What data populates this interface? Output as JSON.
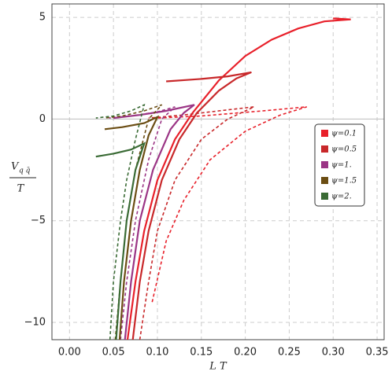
{
  "chart_data": {
    "type": "line",
    "x_label": "L T",
    "y_label": {
      "numerator": "V",
      "subscript": "q q̄",
      "denominator": "T"
    },
    "xlim": [
      -0.02,
      0.358
    ],
    "ylim": [
      -10.85,
      5.66
    ],
    "xticks": [
      {
        "value": 0,
        "label": "0.00"
      },
      0.05,
      {
        "value": 0.1,
        "label": "0.10"
      },
      0.15,
      {
        "value": 0.2,
        "label": "0.20"
      },
      0.25,
      {
        "value": 0.3,
        "label": "0.30"
      },
      0.35
    ],
    "yticks": [
      {
        "value": -10,
        "label": "−10"
      },
      {
        "value": -5,
        "label": "−5"
      },
      0,
      5
    ],
    "grid": true,
    "legend": "right",
    "series": [
      {
        "name": "ψ=0.1",
        "color": "#e8202a",
        "lines": [
          {
            "style": "solid",
            "x": [
              0.066,
              0.075,
              0.085,
              0.1,
              0.12,
              0.14,
              0.17,
              0.2,
              0.23,
              0.26,
              0.29,
              0.32,
              0.3
            ],
            "values": [
              -10.85,
              -8,
              -5.5,
              -3,
              -1,
              0.3,
              1.9,
              3.1,
              3.9,
              4.45,
              4.8,
              4.9,
              4.95
            ]
          },
          {
            "style": "dashed",
            "x": [
              0.094,
              0.11,
              0.13,
              0.16,
              0.2,
              0.24,
              0.27,
              0.22,
              0.15,
              0.1
            ],
            "values": [
              -9,
              -6,
              -4,
              -2,
              -0.6,
              0.2,
              0.6,
              0.4,
              0.15,
              0.05
            ]
          }
        ]
      },
      {
        "name": "ψ=0.5",
        "color": "#c8282a",
        "lines": [
          {
            "style": "solid",
            "x": [
              0.072,
              0.08,
              0.09,
              0.105,
              0.125,
              0.145,
              0.17,
              0.19,
              0.207,
              0.18,
              0.15,
              0.11
            ],
            "values": [
              -10.85,
              -8,
              -5.5,
              -3,
              -1,
              0.3,
              1.4,
              2,
              2.3,
              2.1,
              1.97,
              1.85
            ]
          },
          {
            "style": "dashed",
            "x": [
              0.08,
              0.09,
              0.1,
              0.12,
              0.15,
              0.18,
              0.21,
              0.17,
              0.13,
              0.09
            ],
            "values": [
              -10.85,
              -8,
              -5.5,
              -3,
              -1,
              0,
              0.6,
              0.4,
              0.2,
              0.05
            ]
          }
        ]
      },
      {
        "name": "ψ=1.",
        "color": "#9b3585",
        "lines": [
          {
            "style": "solid",
            "x": [
              0.063,
              0.07,
              0.08,
              0.095,
              0.115,
              0.13,
              0.142,
              0.11,
              0.08,
              0.05
            ],
            "values": [
              -10.85,
              -8,
              -5,
              -2.5,
              -0.5,
              0.3,
              0.7,
              0.4,
              0.2,
              0.05
            ]
          },
          {
            "style": "dashed",
            "x": [
              0.058,
              0.065,
              0.075,
              0.09,
              0.105,
              0.12,
              0.1,
              0.07,
              0.045
            ],
            "values": [
              -10.85,
              -8,
              -5,
              -2,
              0,
              0.6,
              0.35,
              0.15,
              0.05
            ]
          }
        ]
      },
      {
        "name": "ψ=1.5",
        "color": "#6b4d13",
        "lines": [
          {
            "style": "solid",
            "x": [
              0.057,
              0.062,
              0.07,
              0.08,
              0.09,
              0.1,
              0.085,
              0.06,
              0.04
            ],
            "values": [
              -10.85,
              -8,
              -5,
              -2.5,
              -0.8,
              0.1,
              -0.2,
              -0.4,
              -0.5
            ]
          },
          {
            "style": "dashed",
            "x": [
              0.052,
              0.058,
              0.065,
              0.075,
              0.09,
              0.105,
              0.085,
              0.06,
              0.04
            ],
            "values": [
              -10.85,
              -8,
              -5,
              -2.5,
              0,
              0.7,
              0.4,
              0.15,
              0.05
            ]
          }
        ]
      },
      {
        "name": "ψ=2.",
        "color": "#3a6b35",
        "lines": [
          {
            "style": "solid",
            "x": [
              0.053,
              0.058,
              0.065,
              0.075,
              0.085,
              0.07,
              0.05,
              0.03
            ],
            "values": [
              -10.85,
              -8,
              -5,
              -2.5,
              -1.2,
              -1.5,
              -1.7,
              -1.85
            ]
          },
          {
            "style": "dashed",
            "x": [
              0.046,
              0.05,
              0.058,
              0.065,
              0.075,
              0.085,
              0.07,
              0.05,
              0.03
            ],
            "values": [
              -10.85,
              -8,
              -5,
              -3,
              -1,
              0.7,
              0.4,
              0.15,
              0.05
            ]
          }
        ]
      }
    ]
  }
}
